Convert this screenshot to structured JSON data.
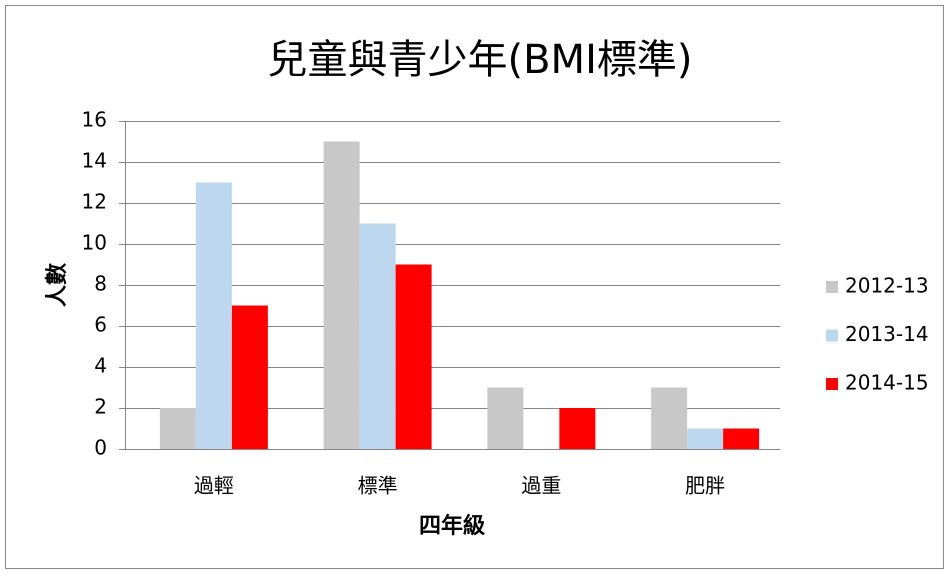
{
  "chart_data": {
    "type": "bar",
    "title": "兒童與青少年(BMI標準)",
    "x_label": "四年級",
    "y_label": "人數",
    "categories": [
      "過輕",
      "標準",
      "過重",
      "肥胖"
    ],
    "series": [
      {
        "name": "2012-13",
        "color": "#c8c8c8",
        "values": [
          2,
          15,
          3,
          3
        ]
      },
      {
        "name": "2013-14",
        "color": "#bdd7ee",
        "values": [
          13,
          11,
          0,
          1
        ]
      },
      {
        "name": "2014-15",
        "color": "#ff0000",
        "values": [
          7,
          9,
          2,
          1
        ]
      }
    ],
    "ylim": [
      0,
      16
    ],
    "yticks": [
      0,
      2,
      4,
      6,
      8,
      10,
      12,
      14,
      16
    ],
    "grid": true,
    "legend": "right"
  }
}
